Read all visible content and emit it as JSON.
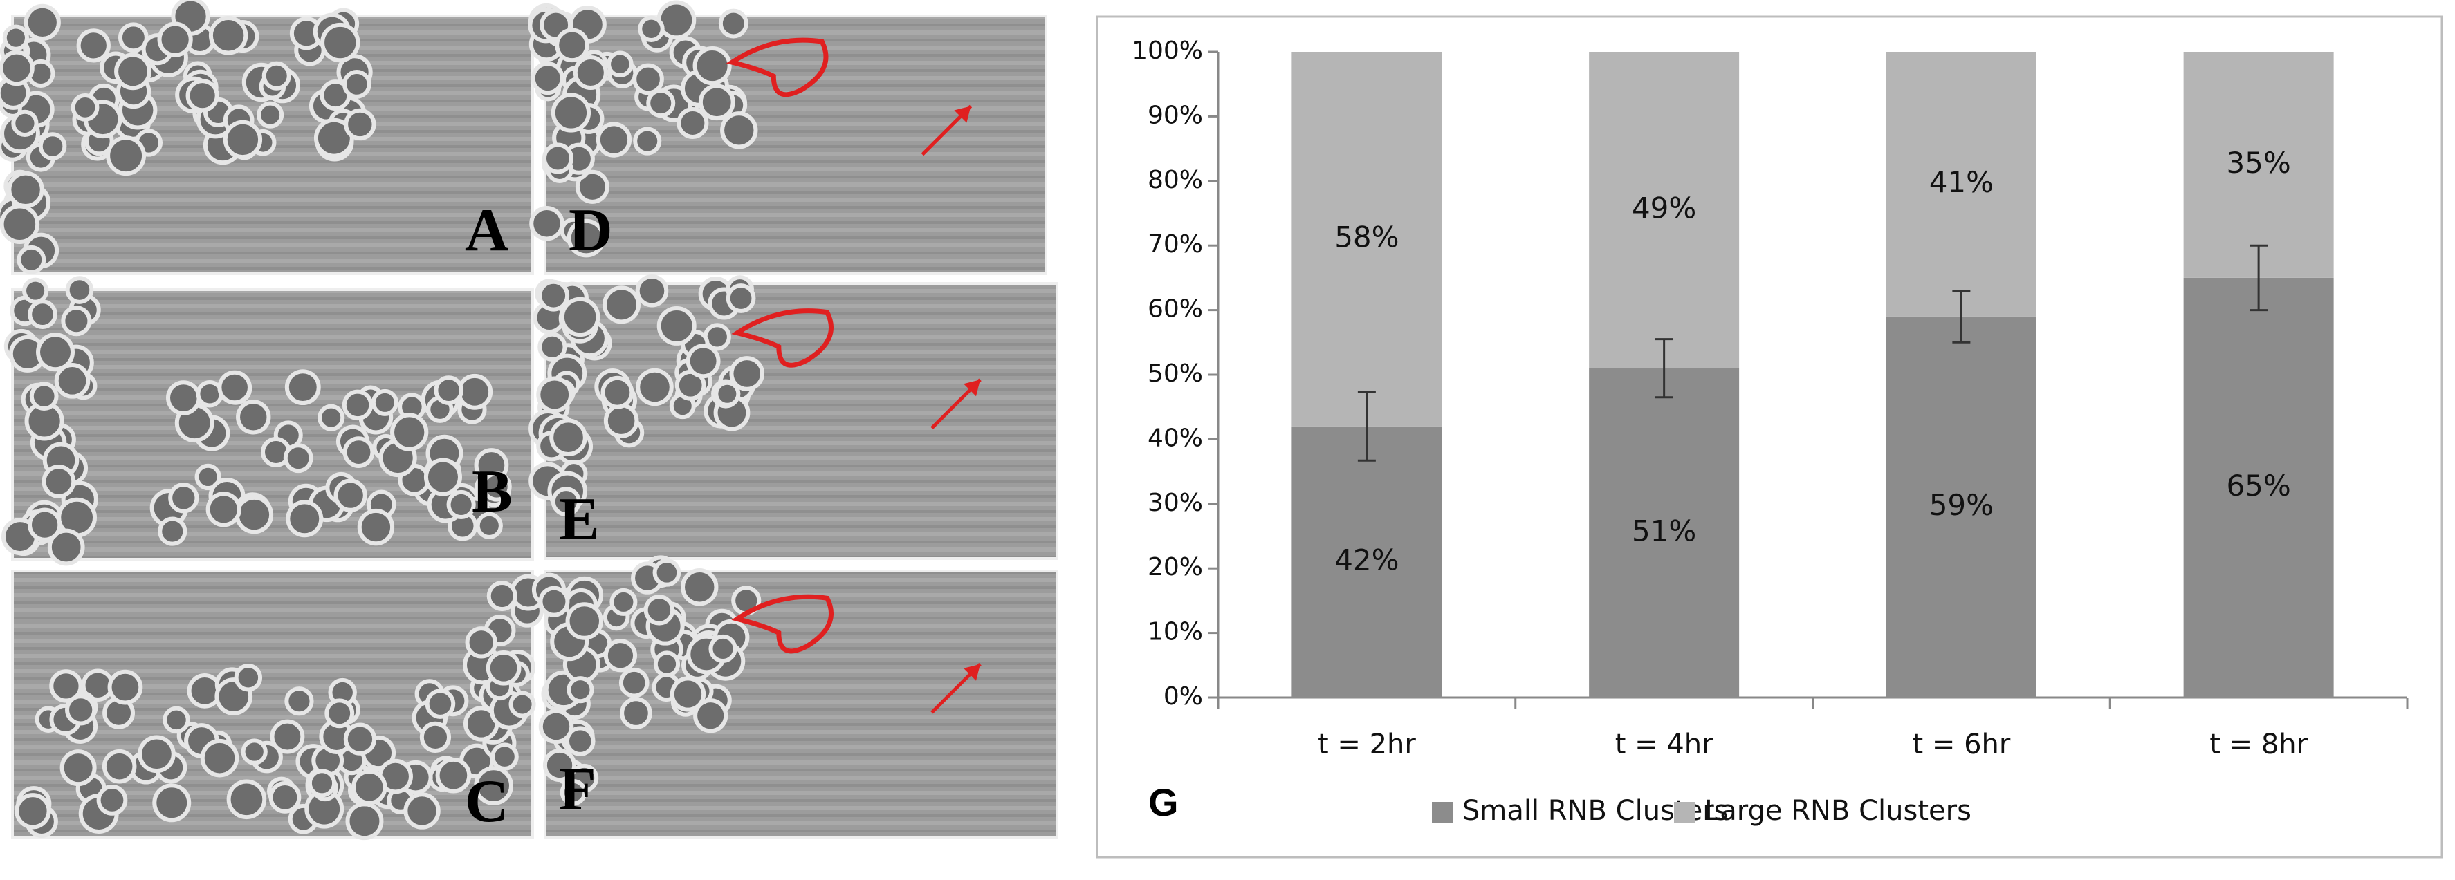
{
  "image_panels": {
    "labels": [
      "A",
      "B",
      "C",
      "D",
      "E",
      "F"
    ]
  },
  "chart_data": {
    "type": "stacked_bar",
    "panel_label": "G",
    "categories": [
      "t = 2hr",
      "t = 4hr",
      "t = 6hr",
      "t = 8hr"
    ],
    "series": [
      {
        "name": "Small RNB Clusters",
        "color": "#8c8c8c",
        "values": [
          42,
          51,
          59,
          65
        ],
        "value_labels": [
          "42%",
          "51%",
          "59%",
          "65%"
        ],
        "errors": [
          5.3,
          4.5,
          4,
          5
        ]
      },
      {
        "name": "Large RNB Clusters",
        "color": "#b5b5b5",
        "values": [
          58,
          49,
          41,
          35
        ],
        "value_labels": [
          "58%",
          "49%",
          "41%",
          "35%"
        ]
      }
    ],
    "ylim": [
      0,
      100
    ],
    "yticks": [
      {
        "value": 0,
        "label": "0%"
      },
      {
        "value": 10,
        "label": "10%"
      },
      {
        "value": 20,
        "label": "20%"
      },
      {
        "value": 30,
        "label": "30%"
      },
      {
        "value": 40,
        "label": "40%"
      },
      {
        "value": 50,
        "label": "50%"
      },
      {
        "value": 60,
        "label": "60%"
      },
      {
        "value": 70,
        "label": "70%"
      },
      {
        "value": 80,
        "label": "80%"
      },
      {
        "value": 90,
        "label": "90%"
      },
      {
        "value": 100,
        "label": "100%"
      }
    ],
    "legend": "bottom"
  }
}
